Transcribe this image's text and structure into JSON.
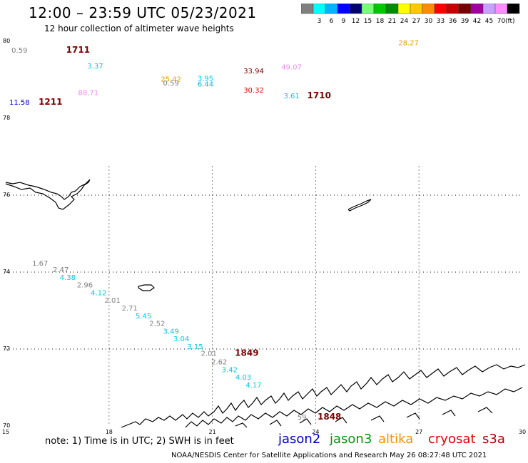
{
  "header": {
    "title": "12:00 – 23:59 UTC 05/23/2021",
    "subtitle": "12 hour collection of altimeter wave heights"
  },
  "legend": {
    "unit": "(ft)",
    "items": [
      {
        "label": "",
        "color": "#808080"
      },
      {
        "label": "3",
        "color": "#00ffff"
      },
      {
        "label": "6",
        "color": "#00b4ff"
      },
      {
        "label": "9",
        "color": "#0000ff"
      },
      {
        "label": "12",
        "color": "#00006e"
      },
      {
        "label": "15",
        "color": "#78ff78"
      },
      {
        "label": "18",
        "color": "#00c800"
      },
      {
        "label": "21",
        "color": "#008c00"
      },
      {
        "label": "24",
        "color": "#ffff00"
      },
      {
        "label": "27",
        "color": "#ffc800"
      },
      {
        "label": "30",
        "color": "#ff8c00"
      },
      {
        "label": "33",
        "color": "#ff0000"
      },
      {
        "label": "36",
        "color": "#c80000"
      },
      {
        "label": "39",
        "color": "#780000"
      },
      {
        "label": "42",
        "color": "#a000a0"
      },
      {
        "label": "45",
        "color": "#c8a0ff"
      },
      {
        "label": "70",
        "color": "#ff8cff"
      },
      {
        "label": "",
        "color": "#000000"
      }
    ]
  },
  "axes": {
    "lon_ticks": [
      "15",
      "18",
      "21",
      "24",
      "27",
      "30"
    ],
    "lat_ticks": [
      "80",
      "78",
      "76",
      "74",
      "72",
      "70"
    ]
  },
  "observations": [
    {
      "lon": 15.4,
      "lat": 79.7,
      "text": "0.59",
      "color": "#808080"
    },
    {
      "lon": 17.1,
      "lat": 79.7,
      "text": "1711",
      "color": "#800000",
      "kind": "pass"
    },
    {
      "lon": 17.6,
      "lat": 79.3,
      "text": "3.37",
      "color": "#00c8e6"
    },
    {
      "lon": 17.4,
      "lat": 78.6,
      "text": "88.71",
      "color": "#f088f0"
    },
    {
      "lon": 15.4,
      "lat": 78.35,
      "text": "11.58",
      "color": "#0000c8"
    },
    {
      "lon": 16.3,
      "lat": 78.35,
      "text": "1211",
      "color": "#800000",
      "kind": "pass"
    },
    {
      "lon": 19.8,
      "lat": 78.95,
      "text": "25.42",
      "color": "#e6a000"
    },
    {
      "lon": 19.8,
      "lat": 78.85,
      "text": "0.59",
      "color": "#808080"
    },
    {
      "lon": 20.8,
      "lat": 78.97,
      "text": "3.95",
      "color": "#00c8e6"
    },
    {
      "lon": 20.8,
      "lat": 78.82,
      "text": "6.44",
      "color": "#00b4e6"
    },
    {
      "lon": 22.2,
      "lat": 79.17,
      "text": "33.94",
      "color": "#800000"
    },
    {
      "lon": 22.2,
      "lat": 78.67,
      "text": "30.32",
      "color": "#e60000"
    },
    {
      "lon": 23.3,
      "lat": 79.27,
      "text": "49.07",
      "color": "#f088f0"
    },
    {
      "lon": 23.3,
      "lat": 78.52,
      "text": "3.61",
      "color": "#00c8e6"
    },
    {
      "lon": 24.1,
      "lat": 78.52,
      "text": "1710",
      "color": "#800000",
      "kind": "pass"
    },
    {
      "lon": 26.7,
      "lat": 79.9,
      "text": "28.27",
      "color": "#e6a000"
    },
    {
      "lon": 16.0,
      "lat": 74.17,
      "text": "1.67",
      "color": "#808080"
    },
    {
      "lon": 16.6,
      "lat": 74.0,
      "text": "2.47",
      "color": "#808080"
    },
    {
      "lon": 16.8,
      "lat": 73.8,
      "text": "4.38",
      "color": "#00c8e6"
    },
    {
      "lon": 17.3,
      "lat": 73.6,
      "text": "2.96",
      "color": "#808080"
    },
    {
      "lon": 17.7,
      "lat": 73.4,
      "text": "4.12",
      "color": "#00c8e6"
    },
    {
      "lon": 18.1,
      "lat": 73.2,
      "text": "2.01",
      "color": "#808080"
    },
    {
      "lon": 18.6,
      "lat": 73.0,
      "text": "2.71",
      "color": "#808080"
    },
    {
      "lon": 19.0,
      "lat": 72.8,
      "text": "5.45",
      "color": "#00c8e6"
    },
    {
      "lon": 19.4,
      "lat": 72.6,
      "text": "2.52",
      "color": "#808080"
    },
    {
      "lon": 19.8,
      "lat": 72.4,
      "text": "3.49",
      "color": "#00c8e6"
    },
    {
      "lon": 20.1,
      "lat": 72.2,
      "text": "3.04",
      "color": "#00c8e6"
    },
    {
      "lon": 20.5,
      "lat": 72.0,
      "text": "3.15",
      "color": "#00c8e6"
    },
    {
      "lon": 20.9,
      "lat": 71.82,
      "text": "2.01",
      "color": "#808080"
    },
    {
      "lon": 22.0,
      "lat": 71.82,
      "text": "1849",
      "color": "#800000",
      "kind": "pass"
    },
    {
      "lon": 21.2,
      "lat": 71.6,
      "text": "2.62",
      "color": "#808080"
    },
    {
      "lon": 21.5,
      "lat": 71.4,
      "text": "3.42",
      "color": "#00c8e6"
    },
    {
      "lon": 21.9,
      "lat": 71.2,
      "text": "4.03",
      "color": "#00c8e6"
    },
    {
      "lon": 22.2,
      "lat": 71.0,
      "text": "4.17",
      "color": "#00c8e6"
    },
    {
      "lon": 23.6,
      "lat": 70.17,
      "text": "59",
      "color": "#808080"
    },
    {
      "lon": 24.4,
      "lat": 70.17,
      "text": "1848",
      "color": "#800000",
      "kind": "pass"
    }
  ],
  "footer": {
    "note": "note:  1) Time is in UTC;  2) SWH is in feet",
    "satellites": [
      {
        "name": "jason2",
        "color": "#0000c8"
      },
      {
        "name": "jason3",
        "color": "#009600"
      },
      {
        "name": "altika",
        "color": "#ff8c00"
      },
      {
        "name": "cryosat",
        "color": "#e60000"
      },
      {
        "name": "s3a",
        "color": "#b40000"
      }
    ],
    "credit": "NOAA/NESDIS Center for Satellite Applications and Research     May 26 08:27:48 UTC 2021"
  }
}
